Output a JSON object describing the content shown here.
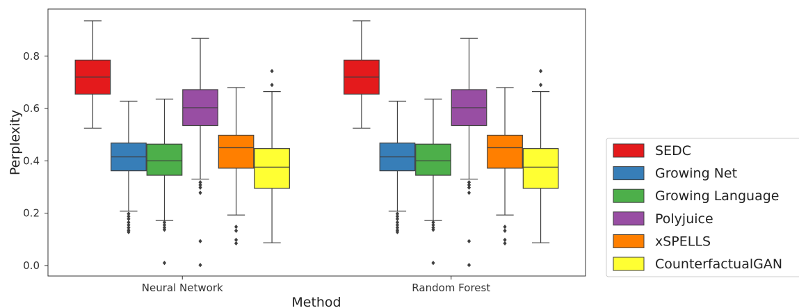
{
  "chart_data": {
    "type": "boxplot",
    "xlabel": "Method",
    "ylabel": "Perplexity",
    "categories": [
      "Neural Network",
      "Random Forest"
    ],
    "y_ticks": [
      "0.0",
      "0.2",
      "0.4",
      "0.6",
      "0.8"
    ],
    "ylim": [
      -0.04,
      0.98
    ],
    "grid": false,
    "legend_position": "right",
    "series": [
      {
        "name": "SEDC",
        "color": "#e41a1c",
        "stats": [
          {
            "whislo": 0.525,
            "q1": 0.655,
            "med": 0.72,
            "q3": 0.785,
            "whishi": 0.935,
            "fliers": []
          },
          {
            "whislo": 0.525,
            "q1": 0.655,
            "med": 0.72,
            "q3": 0.785,
            "whishi": 0.935,
            "fliers": []
          }
        ]
      },
      {
        "name": "Growing Net",
        "color": "#377eb8",
        "stats": [
          {
            "whislo": 0.208,
            "q1": 0.362,
            "med": 0.415,
            "q3": 0.468,
            "whishi": 0.628,
            "fliers": [
              0.198,
              0.188,
              0.178,
              0.165,
              0.155,
              0.145,
              0.135,
              0.128
            ]
          },
          {
            "whislo": 0.208,
            "q1": 0.362,
            "med": 0.415,
            "q3": 0.468,
            "whishi": 0.628,
            "fliers": [
              0.198,
              0.188,
              0.178,
              0.165,
              0.155,
              0.145,
              0.135,
              0.128
            ]
          }
        ]
      },
      {
        "name": "Growing Language",
        "color": "#4daf4a",
        "stats": [
          {
            "whislo": 0.172,
            "q1": 0.345,
            "med": 0.4,
            "q3": 0.464,
            "whishi": 0.636,
            "fliers": [
              0.165,
              0.155,
              0.145,
              0.137,
              0.01
            ]
          },
          {
            "whislo": 0.172,
            "q1": 0.345,
            "med": 0.4,
            "q3": 0.464,
            "whishi": 0.636,
            "fliers": [
              0.165,
              0.155,
              0.145,
              0.137,
              0.01
            ]
          }
        ]
      },
      {
        "name": "Polyjuice",
        "color": "#984ea3",
        "stats": [
          {
            "whislo": 0.33,
            "q1": 0.535,
            "med": 0.603,
            "q3": 0.672,
            "whishi": 0.868,
            "fliers": [
              0.318,
              0.308,
              0.298,
              0.278,
              0.093,
              0.002
            ]
          },
          {
            "whislo": 0.33,
            "q1": 0.535,
            "med": 0.603,
            "q3": 0.672,
            "whishi": 0.868,
            "fliers": [
              0.318,
              0.308,
              0.298,
              0.278,
              0.093,
              0.002
            ]
          }
        ]
      },
      {
        "name": "xSPELLS",
        "color": "#ff7f00",
        "stats": [
          {
            "whislo": 0.193,
            "q1": 0.372,
            "med": 0.45,
            "q3": 0.498,
            "whishi": 0.68,
            "fliers": [
              0.148,
              0.133,
              0.098,
              0.085
            ]
          },
          {
            "whislo": 0.193,
            "q1": 0.372,
            "med": 0.45,
            "q3": 0.498,
            "whishi": 0.68,
            "fliers": [
              0.148,
              0.133,
              0.098,
              0.085
            ]
          }
        ]
      },
      {
        "name": "CounterfactualGAN",
        "color": "#ffff33",
        "stats": [
          {
            "whislo": 0.087,
            "q1": 0.295,
            "med": 0.376,
            "q3": 0.447,
            "whishi": 0.665,
            "fliers": [
              0.743,
              0.69
            ]
          },
          {
            "whislo": 0.087,
            "q1": 0.295,
            "med": 0.376,
            "q3": 0.447,
            "whishi": 0.665,
            "fliers": [
              0.743,
              0.69
            ]
          }
        ]
      }
    ]
  }
}
